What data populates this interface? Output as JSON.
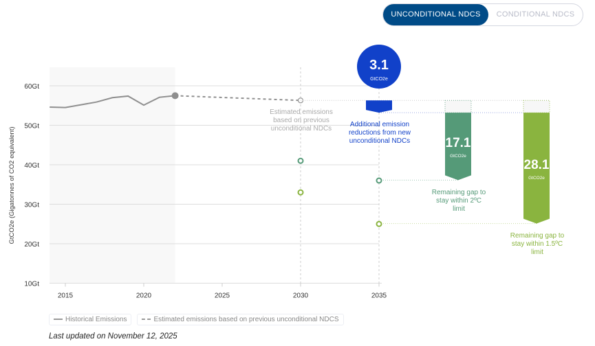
{
  "toggle": {
    "unconditional": "UNCONDITIONAL NDCS",
    "conditional": "CONDITIONAL NDCS"
  },
  "colors": {
    "historical": "#8f8f8f",
    "reduction": "#1141c9",
    "gap2": "#559a78",
    "gap15": "#8ab43f",
    "toggle_active": "#004b87"
  },
  "chart_data": {
    "type": "line",
    "ylabel": "GtCO2e (Gigatonnes of CO2 equivalent)",
    "ylim": [
      10,
      64
    ],
    "xlim": [
      2014,
      2037
    ],
    "yticks": [
      "60Gt",
      "50Gt",
      "40Gt",
      "30Gt",
      "20Gt",
      "10Gt"
    ],
    "ytick_values": [
      60,
      50,
      40,
      30,
      20,
      10
    ],
    "xticks": [
      "2015",
      "2020",
      "2025",
      "2030",
      "2035"
    ],
    "xtick_values": [
      2015,
      2020,
      2025,
      2030,
      2035
    ],
    "historical": {
      "name": "Historical Emissions",
      "x": [
        2014,
        2015,
        2016,
        2017,
        2018,
        2019,
        2020,
        2021,
        2022
      ],
      "y": [
        54.6,
        54.5,
        55.2,
        55.9,
        57.0,
        57.4,
        55.1,
        57.1,
        57.5
      ]
    },
    "estimated": {
      "name": "Estimated emissions based on previous unconditional NDCS",
      "x": [
        2022,
        2030
      ],
      "y": [
        57.5,
        56.3
      ]
    },
    "points": [
      {
        "x": 2030,
        "y": 41,
        "series": "2C"
      },
      {
        "x": 2030,
        "y": 33,
        "series": "1.5C"
      },
      {
        "x": 2035,
        "y": 36,
        "series": "2C"
      },
      {
        "x": 2035,
        "y": 25,
        "series": "1.5C"
      }
    ],
    "reduction": {
      "value": "3.1",
      "unit": "GtCO2e",
      "from": 56.3,
      "to": 53.2,
      "label": "Additional emission reductions from new unconditional NDCs"
    },
    "gap2": {
      "value": "17.1",
      "unit": "GtCO2e",
      "from": 53.2,
      "to": 36.1,
      "label": "Remaining gap to stay within 2ºC limit"
    },
    "gap15": {
      "value": "28.1",
      "unit": "GtCO2e",
      "from": 53.2,
      "to": 25.1,
      "label": "Remaining gap to stay within 1.5ºC limit"
    },
    "estimate_label": "Estimated emissions based on previous unconditional NDCs",
    "shaded_until": 2022
  },
  "legend": {
    "historical": "Historical Emissions",
    "estimated": "Estimated emissions based on previous unconditional NDCS"
  },
  "updated": "Last updated on November 12, 2025"
}
